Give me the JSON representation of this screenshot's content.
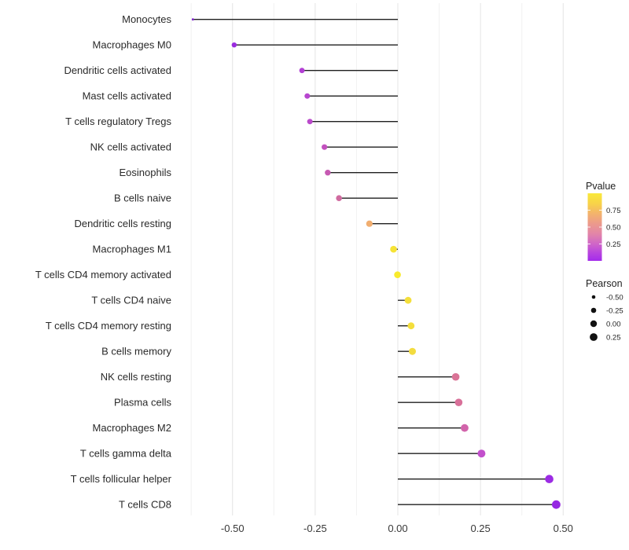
{
  "chart_data": {
    "type": "lollipop",
    "title": "",
    "xlabel": "",
    "ylabel": "",
    "xlim": [
      -0.675,
      0.535
    ],
    "x_major_ticks": [
      -0.5,
      -0.25,
      0.0,
      0.25,
      0.5
    ],
    "x_minor_ticks": [
      -0.625,
      -0.375,
      -0.125,
      0.125,
      0.375
    ],
    "x_tick_labels": [
      "-0.50",
      "-0.25",
      "0.00",
      "0.25",
      "0.50"
    ],
    "grid": "vertical major and minor gridlines only, light gray, white panel background",
    "legend_position": "right",
    "value_note": "Pearson read from x-axis; Pvalue estimated from color scale",
    "rows": [
      {
        "label": "Monocytes",
        "pearson": -0.62,
        "pvalue_est": 0.02,
        "color": "#8024CE",
        "r": 1.4
      },
      {
        "label": "Macrophages M0",
        "pearson": -0.495,
        "pvalue_est": 0.05,
        "color": "#992BDE",
        "r": 3.2
      },
      {
        "label": "Dendritic cells activated",
        "pearson": -0.29,
        "pvalue_est": 0.14,
        "color": "#B23FD4",
        "r": 3.4
      },
      {
        "label": "Mast cells activated",
        "pearson": -0.274,
        "pvalue_est": 0.16,
        "color": "#B746CF",
        "r": 3.5
      },
      {
        "label": "T cells regulatory  Tregs",
        "pearson": -0.266,
        "pvalue_est": 0.17,
        "color": "#BA4ACB",
        "r": 3.5
      },
      {
        "label": "NK cells activated",
        "pearson": -0.222,
        "pvalue_est": 0.24,
        "color": "#C251BE",
        "r": 3.6
      },
      {
        "label": "Eosinophils",
        "pearson": -0.212,
        "pvalue_est": 0.27,
        "color": "#C659B2",
        "r": 3.7
      },
      {
        "label": "B cells naive",
        "pearson": -0.178,
        "pvalue_est": 0.36,
        "color": "#D06BA0",
        "r": 3.8
      },
      {
        "label": "Dendritic cells resting",
        "pearson": -0.086,
        "pvalue_est": 0.65,
        "color": "#F1AE70",
        "r": 4.1
      },
      {
        "label": "Macrophages M1",
        "pearson": -0.013,
        "pvalue_est": 0.88,
        "color": "#F6E335",
        "r": 4.3
      },
      {
        "label": "T cells CD4 memory activated",
        "pearson": -0.001,
        "pvalue_est": 0.97,
        "color": "#F8EA2D",
        "r": 4.3
      },
      {
        "label": "T cells CD4 naive",
        "pearson": 0.031,
        "pvalue_est": 0.82,
        "color": "#F4DF3B",
        "r": 4.4
      },
      {
        "label": "T cells CD4 memory resting",
        "pearson": 0.04,
        "pvalue_est": 0.81,
        "color": "#F4DE3C",
        "r": 4.4
      },
      {
        "label": "B cells memory",
        "pearson": 0.044,
        "pvalue_est": 0.8,
        "color": "#F3DC3F",
        "r": 4.5
      },
      {
        "label": "NK cells resting",
        "pearson": 0.175,
        "pvalue_est": 0.42,
        "color": "#DA7497",
        "r": 4.8
      },
      {
        "label": "Plasma cells",
        "pearson": 0.184,
        "pvalue_est": 0.4,
        "color": "#D87099",
        "r": 4.8
      },
      {
        "label": "Macrophages M2",
        "pearson": 0.202,
        "pvalue_est": 0.33,
        "color": "#D264AB",
        "r": 4.9
      },
      {
        "label": "T cells gamma delta",
        "pearson": 0.253,
        "pvalue_est": 0.22,
        "color": "#C250CC",
        "r": 5.0
      },
      {
        "label": "T cells follicular helper",
        "pearson": 0.458,
        "pvalue_est": 0.05,
        "color": "#9C2CE4",
        "r": 5.3
      },
      {
        "label": "T cells CD8",
        "pearson": 0.479,
        "pvalue_est": 0.04,
        "color": "#9628E2",
        "r": 5.4
      }
    ],
    "legend": {
      "pvalue_title": "Pvalue",
      "pvalue_ticks": [
        {
          "value": 0.75,
          "label": "0.75"
        },
        {
          "value": 0.5,
          "label": "0.50"
        },
        {
          "value": 0.25,
          "label": "0.25"
        }
      ],
      "pvalue_gradient_top_to_bottom": [
        {
          "offset": 0.0,
          "color": "#F9E93A"
        },
        {
          "offset": 0.15,
          "color": "#F8D348"
        },
        {
          "offset": 0.3,
          "color": "#F3B36C"
        },
        {
          "offset": 0.45,
          "color": "#EC9A8C"
        },
        {
          "offset": 0.6,
          "color": "#E285A8"
        },
        {
          "offset": 0.75,
          "color": "#CF66C8"
        },
        {
          "offset": 0.88,
          "color": "#B844DE"
        },
        {
          "offset": 1.0,
          "color": "#A32BEB"
        }
      ],
      "pearson_title": "Pearson",
      "pearson_items": [
        {
          "label": "-0.50",
          "r": 2.3
        },
        {
          "label": "-0.25",
          "r": 3.3
        },
        {
          "label": "0.00",
          "r": 4.2
        },
        {
          "label": "0.25",
          "r": 4.9
        }
      ]
    },
    "colors": {
      "stem": "#1F1F1F",
      "grid_major": "#E4E4E4",
      "grid_minor": "#F1F1F1",
      "axis_text": "#383838",
      "label_text": "#2A2A2A",
      "legend_text": "#1F1F1F",
      "legend_dot": "#111111",
      "background": "#FFFFFF"
    }
  }
}
